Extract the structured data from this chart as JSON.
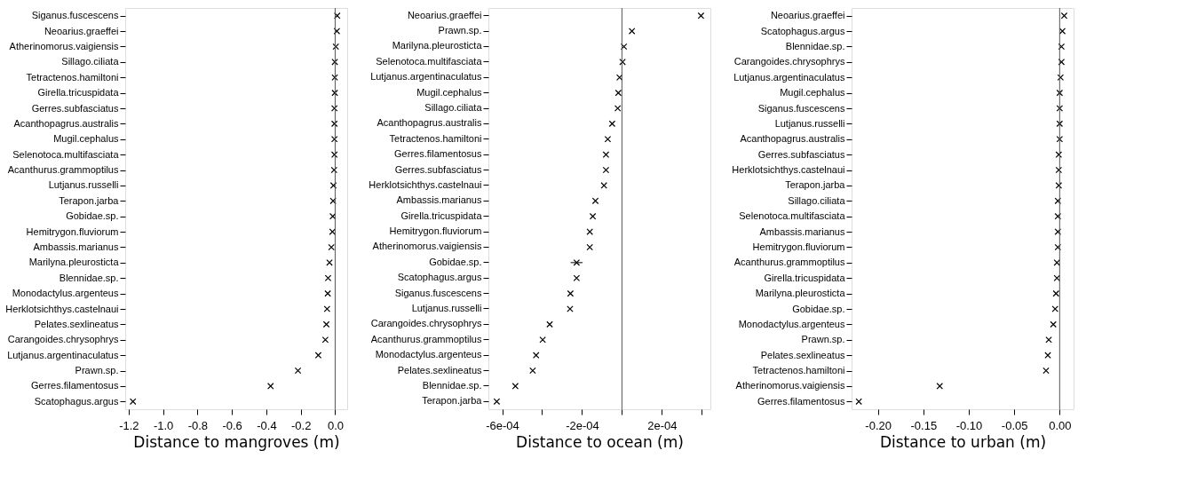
{
  "chart_data": [
    {
      "type": "scatter",
      "orientation": "horizontal",
      "xlabel": "Distance to mangroves (m)",
      "marker": "cross",
      "grid": false,
      "categories": [
        "Siganus.fuscescens",
        "Neoarius.graeffei",
        "Atherinomorus.vaigiensis",
        "Sillago.ciliata",
        "Tetractenos.hamiltoni",
        "Girella.tricuspidata",
        "Gerres.subfasciatus",
        "Acanthopagrus.australis",
        "Mugil.cephalus",
        "Selenotoca.multifasciata",
        "Acanthurus.grammoptilus",
        "Lutjanus.russelli",
        "Terapon.jarba",
        "Gobidae.sp.",
        "Hemitrygon.fluviorum",
        "Ambassis.marianus",
        "Marilyna.pleurosticta",
        "Blennidae.sp.",
        "Monodactylus.argenteus",
        "Herklotsichthys.castelnaui",
        "Pelates.sexlineatus",
        "Carangoides.chrysophrys",
        "Lutjanus.argentinaculatus",
        "Prawn.sp.",
        "Gerres.filamentosus",
        "Scatophagus.argus"
      ],
      "series": [
        {
          "color": "#000000",
          "values": [
            0.012,
            0.01,
            0.004,
            -0.002,
            -0.002,
            -0.002,
            -0.004,
            -0.004,
            -0.004,
            -0.004,
            -0.006,
            -0.01,
            -0.012,
            -0.014,
            -0.016,
            -0.022,
            -0.033,
            -0.041,
            -0.043,
            -0.047,
            -0.051,
            -0.057,
            -0.098,
            -0.216,
            -0.375,
            -1.175
          ]
        }
      ],
      "xlim": [
        -1.22,
        0.07
      ],
      "xticks": [
        {
          "value": -1.2,
          "label": "-1.2"
        },
        {
          "value": -1.0,
          "label": "-1.0"
        },
        {
          "value": -0.8,
          "label": "-0.8"
        },
        {
          "value": -0.6,
          "label": "-0.6"
        },
        {
          "value": -0.4,
          "label": "-0.4"
        },
        {
          "value": -0.2,
          "label": "-0.2"
        },
        {
          "value": 0,
          "label": "0.0"
        }
      ],
      "ref_lines": [
        {
          "axis": "x",
          "value": 0,
          "color": "#555555"
        }
      ]
    },
    {
      "type": "scatter",
      "orientation": "horizontal",
      "xlabel": "Distance to ocean (m)",
      "marker": "cross",
      "grid": false,
      "categories": [
        "Neoarius.graeffei",
        "Prawn.sp.",
        "Marilyna.pleurosticta",
        "Selenotoca.multifasciata",
        "Lutjanus.argentinaculatus",
        "Mugil.cephalus",
        "Sillago.ciliata",
        "Acanthopagrus.australis",
        "Tetractenos.hamiltoni",
        "Gerres.filamentosus",
        "Gerres.subfasciatus",
        "Herklotsichthys.castelnaui",
        "Ambassis.marianus",
        "Girella.tricuspidata",
        "Hemitrygon.fluviorum",
        "Atherinomorus.vaigiensis",
        "Gobidae.sp.",
        "Scatophagus.argus",
        "Siganus.fuscescens",
        "Lutjanus.russelli",
        "Carangoides.chrysophrys",
        "Acanthurus.grammoptilus",
        "Monodactylus.argenteus",
        "Pelates.sexlineatus",
        "Blennidae.sp.",
        "Terapon.jarba"
      ],
      "series": [
        {
          "color": "#000000",
          "values": [
            0.000396,
            5e-05,
            1e-05,
            3e-06,
            -1.2e-05,
            -1.8e-05,
            -2.1e-05,
            -4.9e-05,
            -7.1e-05,
            -8e-05,
            -8e-05,
            -9e-05,
            -0.000133,
            -0.000146,
            -0.000161,
            -0.000161,
            -0.000227,
            -0.000227,
            -0.000258,
            -0.00026,
            -0.000362,
            -0.000397,
            -0.00043,
            -0.000447,
            -0.000534,
            -0.000627
          ],
          "errors": [
            null,
            null,
            null,
            null,
            null,
            null,
            null,
            null,
            null,
            null,
            null,
            null,
            null,
            null,
            null,
            null,
            3e-05,
            null,
            null,
            null,
            null,
            null,
            null,
            null,
            null,
            null
          ]
        }
      ],
      "xlim": [
        -0.000669,
        0.000443
      ],
      "xticks": [
        {
          "value": -0.0006,
          "label": "-6e-04"
        },
        {
          "value": -0.0004,
          "label": null
        },
        {
          "value": -0.0002,
          "label": "-2e-04"
        },
        {
          "value": 0,
          "label": null
        },
        {
          "value": 0.0002,
          "label": "2e-04"
        },
        {
          "value": 0.0004,
          "label": null
        }
      ],
      "ref_lines": [
        {
          "axis": "x",
          "value": 0,
          "color": "#555555"
        }
      ]
    },
    {
      "type": "scatter",
      "orientation": "horizontal",
      "xlabel": "Distance to urban (m)",
      "marker": "cross",
      "grid": false,
      "categories": [
        "Neoarius.graeffei",
        "Scatophagus.argus",
        "Blennidae.sp.",
        "Carangoides.chrysophrys",
        "Lutjanus.argentinaculatus",
        "Mugil.cephalus",
        "Siganus.fuscescens",
        "Lutjanus.russelli",
        "Acanthopagrus.australis",
        "Gerres.subfasciatus",
        "Herklotsichthys.castelnaui",
        "Terapon.jarba",
        "Sillago.ciliata",
        "Selenotoca.multifasciata",
        "Ambassis.marianus",
        "Hemitrygon.fluviorum",
        "Acanthurus.grammoptilus",
        "Girella.tricuspidata",
        "Marilyna.pleurosticta",
        "Gobidae.sp.",
        "Monodactylus.argenteus",
        "Prawn.sp.",
        "Pelates.sexlineatus",
        "Tetractenos.hamiltoni",
        "Atherinomorus.vaigiensis",
        "Gerres.filamentosus"
      ],
      "series": [
        {
          "color": "#000000",
          "values": [
            0.005,
            0.003,
            0.002,
            0.002,
            0.001,
            0.0,
            0.0,
            0.0,
            0.0,
            -0.001,
            -0.001,
            -0.001,
            -0.002,
            -0.002,
            -0.002,
            -0.002,
            -0.003,
            -0.003,
            -0.004,
            -0.005,
            -0.007,
            -0.012,
            -0.013,
            -0.015,
            -0.132,
            -0.221
          ]
        }
      ],
      "xlim": [
        -0.229,
        0.0153
      ],
      "xticks": [
        {
          "value": -0.2,
          "label": "-0.20"
        },
        {
          "value": -0.15,
          "label": "-0.15"
        },
        {
          "value": -0.1,
          "label": "-0.10"
        },
        {
          "value": -0.05,
          "label": "-0.05"
        },
        {
          "value": 0,
          "label": "0.00"
        }
      ],
      "ref_lines": [
        {
          "axis": "x",
          "value": 0,
          "color": "#555555"
        }
      ]
    }
  ]
}
